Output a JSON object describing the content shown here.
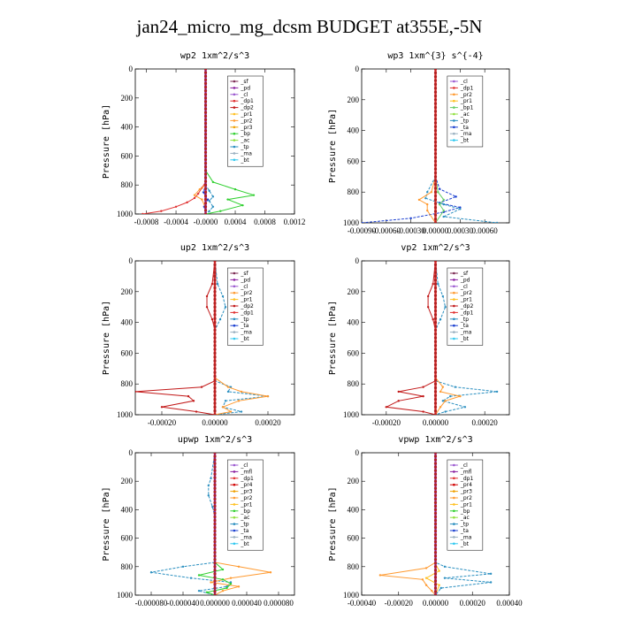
{
  "title": "jan24_micro_mg_dcsm  BUDGET at355E,-5N",
  "colors": {
    "_sf": "#7b2a52",
    "_pd": "#8a1fa0",
    "_cl": "#9b59d0",
    "_dp1": "#e03030",
    "_dp2": "#c21818",
    "_pr1": "#ffc020",
    "_pr2": "#ff9a30",
    "_pr3": "#f0a000",
    "_pr4": "#d00000",
    "_mfl": "#8a1fa0",
    "_bp": "#30d030",
    "_bp1": "#66cc66",
    "_ac": "#90e040",
    "_tp": "#2a8fc0",
    "_ta": "#1a3fd0",
    "_ma": "#9ab0c0",
    "_bt": "#30c8f0"
  },
  "chart_data": [
    {
      "type": "line",
      "title": "wp2  1xm^2/s^3",
      "ylabel": "Pressure [hPa]",
      "xlim": [
        -0.00095,
        0.0012
      ],
      "ylim": [
        1000,
        0
      ],
      "yticks": [
        0,
        200,
        400,
        600,
        800,
        1000
      ],
      "xtick_labels": [
        "-0.0008",
        "-0.0004",
        "-0.0000",
        "0.0004",
        "0.0008",
        "0.0012"
      ],
      "xtick_values": [
        -0.0008,
        -0.0004,
        0.0,
        0.0004,
        0.0008,
        0.0012
      ],
      "legend": [
        "_sf",
        "_pd",
        "_cl",
        "_dp1",
        "_dp2",
        "_pr1",
        "_pr2",
        "_pr3",
        "_bp",
        "_ac",
        "_tp",
        "_ma",
        "_bt"
      ],
      "series": [
        {
          "key": "_dp1",
          "x": [
            0,
            0,
            0,
            -5e-05,
            -0.0001,
            -0.00015,
            -0.00025,
            -0.0004,
            -0.0006,
            -0.00085
          ],
          "y": [
            0,
            600,
            780,
            820,
            860,
            890,
            920,
            950,
            980,
            1000
          ]
        },
        {
          "key": "_pr2",
          "x": [
            0,
            0,
            0,
            -8e-05,
            -0.00015,
            -5e-05,
            0,
            0
          ],
          "y": [
            0,
            600,
            800,
            830,
            870,
            900,
            960,
            1000
          ]
        },
        {
          "key": "_bp",
          "x": [
            0,
            0,
            0.0001,
            0.0004,
            0.00065,
            0.0003,
            0.0005,
            0.0002,
            0
          ],
          "y": [
            0,
            700,
            780,
            830,
            870,
            900,
            940,
            980,
            1000
          ]
        },
        {
          "key": "_tp",
          "x": [
            0,
            0,
            0,
            5e-05,
            0.0001,
            5e-05,
            0.0001,
            5e-05,
            0
          ],
          "y": [
            0,
            700,
            800,
            840,
            880,
            910,
            950,
            980,
            1000
          ]
        },
        {
          "key": "_ta",
          "x": [
            0,
            0,
            -3e-05,
            3e-05,
            -2e-05,
            0
          ],
          "y": [
            0,
            800,
            850,
            900,
            950,
            1000
          ]
        },
        {
          "key": "_pd",
          "x": [
            0,
            0,
            0,
            0
          ],
          "y": [
            0,
            400,
            800,
            1000
          ]
        }
      ]
    },
    {
      "type": "line",
      "title": "wp3  1xm^{3} s^{-4}",
      "ylabel": "Pressure [hPa]",
      "xlim": [
        -0.0009,
        0.0009
      ],
      "ylim": [
        1000,
        0
      ],
      "yticks": [
        0,
        200,
        400,
        600,
        800,
        1000
      ],
      "xtick_labels": [
        "-0.00090",
        "-0.00060",
        "-0.00030",
        "0.00000",
        "0.00030",
        "0.00060"
      ],
      "xtick_values": [
        -0.0009,
        -0.0006,
        -0.0003,
        0.0,
        0.0003,
        0.0006
      ],
      "legend": [
        "_cl",
        "_dp1",
        "_pr2",
        "_pr1",
        "_bp1",
        "_ac",
        "_tp",
        "_ta",
        "_ma",
        "_bt"
      ],
      "series": [
        {
          "key": "_ta",
          "x": [
            0,
            0,
            5e-05,
            0.00025,
            5e-05,
            0.0003,
            0.0001,
            -0.0003,
            -0.0009
          ],
          "y": [
            0,
            700,
            780,
            830,
            870,
            900,
            930,
            970,
            1000
          ]
        },
        {
          "key": "_tp",
          "x": [
            0,
            0,
            -0.0001,
            -0.00012,
            0.0001,
            0.0003,
            0.0001,
            0.00075
          ],
          "y": [
            0,
            700,
            800,
            840,
            880,
            910,
            960,
            1000
          ]
        },
        {
          "key": "_pr2",
          "x": [
            0,
            0,
            -5e-05,
            -0.0002,
            -0.0001,
            -0.0001,
            0
          ],
          "y": [
            0,
            700,
            800,
            850,
            880,
            920,
            1000
          ]
        },
        {
          "key": "_bp1",
          "x": [
            0,
            0,
            3e-05,
            0.0001,
            5e-05,
            0.0001,
            0
          ],
          "y": [
            0,
            700,
            800,
            850,
            880,
            920,
            1000
          ]
        },
        {
          "key": "_dp1",
          "x": [
            0,
            0,
            0,
            0
          ],
          "y": [
            0,
            400,
            800,
            1000
          ]
        }
      ]
    },
    {
      "type": "line",
      "title": "up2  1xm^2/s^3",
      "ylabel": "Pressure [hPa]",
      "xlim": [
        -0.0003,
        0.0003
      ],
      "ylim": [
        1000,
        0
      ],
      "yticks": [
        0,
        200,
        400,
        600,
        800,
        1000
      ],
      "xtick_labels": [
        "-0.00020",
        "0.00000",
        "0.00020"
      ],
      "xtick_values": [
        -0.0002,
        0.0,
        0.0002
      ],
      "legend": [
        "_sf",
        "_pd",
        "_cl",
        "_pr2",
        "_pr1",
        "_dp2",
        "_dp1",
        "_tp",
        "_ta",
        "_ma",
        "_bt"
      ],
      "series": [
        {
          "key": "_dp2",
          "x": [
            0,
            -1e-05,
            -3e-05,
            -3e-05,
            -1e-05,
            0,
            0,
            -5e-05,
            -0.0003,
            -0.0001,
            -8e-05,
            -0.0002,
            -7e-05,
            0
          ],
          "y": [
            0,
            150,
            230,
            300,
            380,
            450,
            780,
            820,
            850,
            880,
            910,
            950,
            980,
            1000
          ]
        },
        {
          "key": "_tp",
          "x": [
            0,
            1e-05,
            3e-05,
            4e-05,
            2e-05,
            0,
            0,
            6e-05,
            5e-05,
            0.0002,
            4e-05,
            3e-05,
            0.0001,
            0
          ],
          "y": [
            0,
            150,
            230,
            300,
            380,
            450,
            780,
            820,
            850,
            880,
            910,
            950,
            980,
            1000
          ]
        },
        {
          "key": "_pr2",
          "x": [
            0,
            0,
            5e-05,
            0.0001,
            0.0002,
            9e-05,
            3e-05,
            6e-05,
            0
          ],
          "y": [
            0,
            760,
            820,
            850,
            880,
            910,
            950,
            980,
            1000
          ]
        },
        {
          "key": "_dp1",
          "x": [
            0,
            0,
            0,
            0
          ],
          "y": [
            0,
            400,
            800,
            1000
          ]
        }
      ]
    },
    {
      "type": "line",
      "title": "vp2  1xm^2/s^3",
      "ylabel": "Pressure [hPa]",
      "xlim": [
        -0.0003,
        0.0003
      ],
      "ylim": [
        1000,
        0
      ],
      "yticks": [
        0,
        200,
        400,
        600,
        800,
        1000
      ],
      "xtick_labels": [
        "-0.00020",
        "0.00000",
        "0.00020"
      ],
      "xtick_values": [
        -0.0002,
        0.0,
        0.0002
      ],
      "legend": [
        "_sf",
        "_pd",
        "_cl",
        "_pr2",
        "_pr1",
        "_dp2",
        "_dp1",
        "_tp",
        "_ta",
        "_ma",
        "_bt"
      ],
      "series": [
        {
          "key": "_dp2",
          "x": [
            0,
            -1e-05,
            -3e-05,
            -3e-05,
            -1e-05,
            0,
            0,
            -5e-05,
            -0.00015,
            -5e-05,
            -0.00015,
            -0.0002,
            -5e-05,
            0
          ],
          "y": [
            0,
            150,
            230,
            300,
            380,
            450,
            780,
            820,
            850,
            880,
            910,
            950,
            980,
            1000
          ]
        },
        {
          "key": "_tp",
          "x": [
            0,
            1e-05,
            3e-05,
            4e-05,
            2e-05,
            0,
            0,
            8e-05,
            0.00025,
            6e-05,
            3e-05,
            0.00012,
            4e-05,
            0
          ],
          "y": [
            0,
            150,
            230,
            300,
            380,
            450,
            780,
            820,
            850,
            880,
            910,
            950,
            980,
            1000
          ]
        },
        {
          "key": "_pr2",
          "x": [
            0,
            0,
            3e-05,
            2e-05,
            0.0001,
            4e-05,
            2e-05,
            0
          ],
          "y": [
            0,
            760,
            820,
            850,
            880,
            910,
            950,
            1000
          ]
        },
        {
          "key": "_dp1",
          "x": [
            0,
            0,
            0,
            0
          ],
          "y": [
            0,
            400,
            800,
            1000
          ]
        }
      ]
    },
    {
      "type": "line",
      "title": "upwp  1xm^2/s^3",
      "ylabel": "Pressure [hPa]",
      "xlim": [
        -0.0001,
        0.0001
      ],
      "ylim": [
        1000,
        0
      ],
      "yticks": [
        0,
        200,
        400,
        600,
        800,
        1000
      ],
      "xtick_labels": [
        "-0.000080",
        "-0.000040",
        "0.000000",
        "0.000040",
        "0.000080"
      ],
      "xtick_values": [
        -8e-05,
        -4e-05,
        0.0,
        4e-05,
        8e-05
      ],
      "legend": [
        "_cl",
        "_mfl",
        "_dp1",
        "_pr4",
        "_pr3",
        "_pr2",
        "_pr1",
        "_bp",
        "_ac",
        "_tp",
        "_ta",
        "_ma",
        "_bt"
      ],
      "series": [
        {
          "key": "_tp",
          "x": [
            0,
            -5e-06,
            -8e-06,
            -8e-06,
            -3e-06,
            0,
            0,
            -4e-05,
            -8e-05,
            -3e-05,
            2e-05,
            1.5e-05,
            -2e-05,
            0
          ],
          "y": [
            0,
            180,
            230,
            300,
            380,
            450,
            770,
            800,
            840,
            880,
            910,
            940,
            970,
            1000
          ]
        },
        {
          "key": "_pr2",
          "x": [
            0,
            0,
            3e-05,
            7e-05,
            2e-05,
            -5e-06,
            3e-05,
            1e-05,
            0
          ],
          "y": [
            0,
            770,
            800,
            840,
            880,
            910,
            940,
            970,
            1000
          ]
        },
        {
          "key": "_bp",
          "x": [
            0,
            0,
            1e-05,
            -2e-05,
            1e-05,
            2e-05,
            1.5e-05,
            -1e-05,
            0
          ],
          "y": [
            0,
            770,
            820,
            860,
            890,
            920,
            950,
            980,
            1000
          ]
        },
        {
          "key": "_mfl",
          "x": [
            0,
            0,
            0,
            0
          ],
          "y": [
            0,
            400,
            800,
            1000
          ]
        }
      ]
    },
    {
      "type": "line",
      "title": "vpwp  1xm^2/s^3",
      "ylabel": "Pressure [hPa]",
      "xlim": [
        -0.0004,
        0.0004
      ],
      "ylim": [
        1000,
        0
      ],
      "yticks": [
        0,
        200,
        400,
        600,
        800,
        1000
      ],
      "xtick_labels": [
        "-0.00040",
        "-0.00020",
        "0.00000",
        "0.00020",
        "0.00040"
      ],
      "xtick_values": [
        -0.0004,
        -0.0002,
        0.0,
        0.0002,
        0.0004
      ],
      "legend": [
        "_cl",
        "_mfl",
        "_dp1",
        "_pr4",
        "_pr3",
        "_pr2",
        "_pr1",
        "_bp",
        "_ac",
        "_tp",
        "_ta",
        "_ma",
        "_bt"
      ],
      "series": [
        {
          "key": "_pr2",
          "x": [
            0,
            0,
            -5e-05,
            -0.0003,
            -7e-05,
            -5e-05,
            -2e-05,
            0
          ],
          "y": [
            0,
            770,
            810,
            860,
            890,
            930,
            970,
            1000
          ]
        },
        {
          "key": "_tp",
          "x": [
            0,
            0,
            5e-05,
            0.0003,
            5e-05,
            0.0003,
            3e-05,
            0
          ],
          "y": [
            0,
            770,
            800,
            850,
            880,
            910,
            950,
            1000
          ]
        },
        {
          "key": "_pr1",
          "x": [
            0,
            0,
            2e-05,
            -5e-05,
            2e-05,
            0
          ],
          "y": [
            0,
            780,
            830,
            880,
            930,
            1000
          ]
        },
        {
          "key": "_mfl",
          "x": [
            0,
            0,
            0,
            0
          ],
          "y": [
            0,
            400,
            800,
            1000
          ]
        }
      ]
    }
  ]
}
